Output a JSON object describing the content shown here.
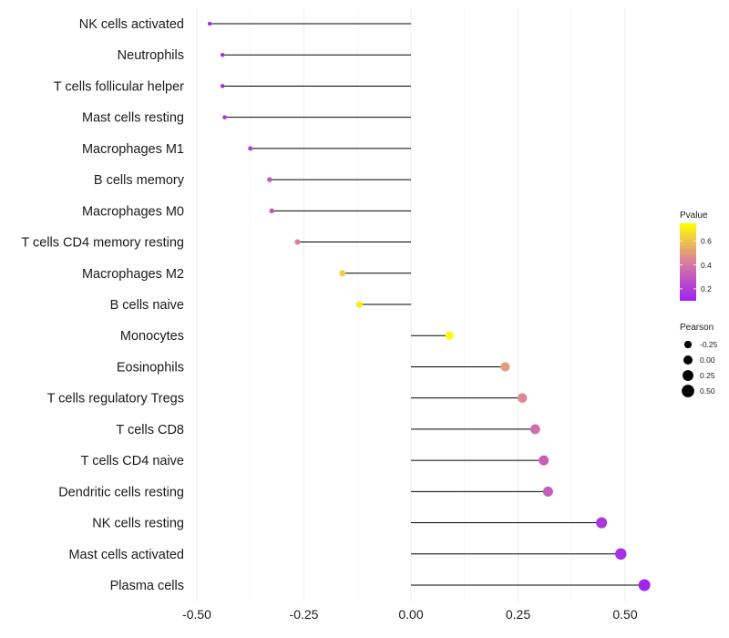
{
  "chart_data": {
    "type": "lollipop",
    "categories": [
      "NK cells activated",
      "Neutrophils",
      "T cells follicular helper",
      "Mast cells resting",
      "Macrophages M1",
      "B cells memory",
      "Macrophages M0",
      "T cells CD4 memory resting",
      "Macrophages M2",
      "B cells naive",
      "Monocytes",
      "Eosinophils",
      "T cells regulatory  Tregs ",
      "T cells CD8",
      "T cells CD4 naive",
      "Dendritic cells resting",
      "NK cells resting",
      "Mast cells activated",
      "Plasma cells"
    ],
    "values": [
      -0.47,
      -0.44,
      -0.44,
      -0.435,
      -0.375,
      -0.33,
      -0.325,
      -0.265,
      -0.16,
      -0.12,
      0.09,
      0.22,
      0.26,
      0.29,
      0.31,
      0.32,
      0.445,
      0.49,
      0.545
    ],
    "pvalues": [
      0.12,
      0.14,
      0.14,
      0.15,
      0.2,
      0.28,
      0.29,
      0.42,
      0.62,
      0.7,
      0.74,
      0.5,
      0.45,
      0.37,
      0.32,
      0.31,
      0.18,
      0.15,
      0.12
    ],
    "xlim": [
      -0.52,
      0.6
    ],
    "xticks": [
      -0.5,
      -0.25,
      0.0,
      0.25,
      0.5
    ],
    "xtick_labels": [
      "-0.50",
      "-0.25",
      "0.00",
      "0.25",
      "0.50"
    ],
    "title": "",
    "xlabel": "",
    "ylabel": "",
    "grid": true,
    "legend_color": {
      "title": "Pvalue",
      "range": [
        0.1,
        0.75
      ],
      "ticks": [
        0.2,
        0.4,
        0.6
      ],
      "tick_labels": [
        "0.2",
        "0.4",
        "0.6"
      ],
      "low_color": "#a020f0",
      "mid_color": "#d87fa0",
      "high_color": "#ffff00"
    },
    "legend_size": {
      "title": "Pearson",
      "values": [
        -0.25,
        0.0,
        0.25,
        0.5
      ],
      "labels": [
        "-0.25",
        "0.00",
        "0.25",
        "0.50"
      ]
    },
    "legend_placement": "right"
  }
}
